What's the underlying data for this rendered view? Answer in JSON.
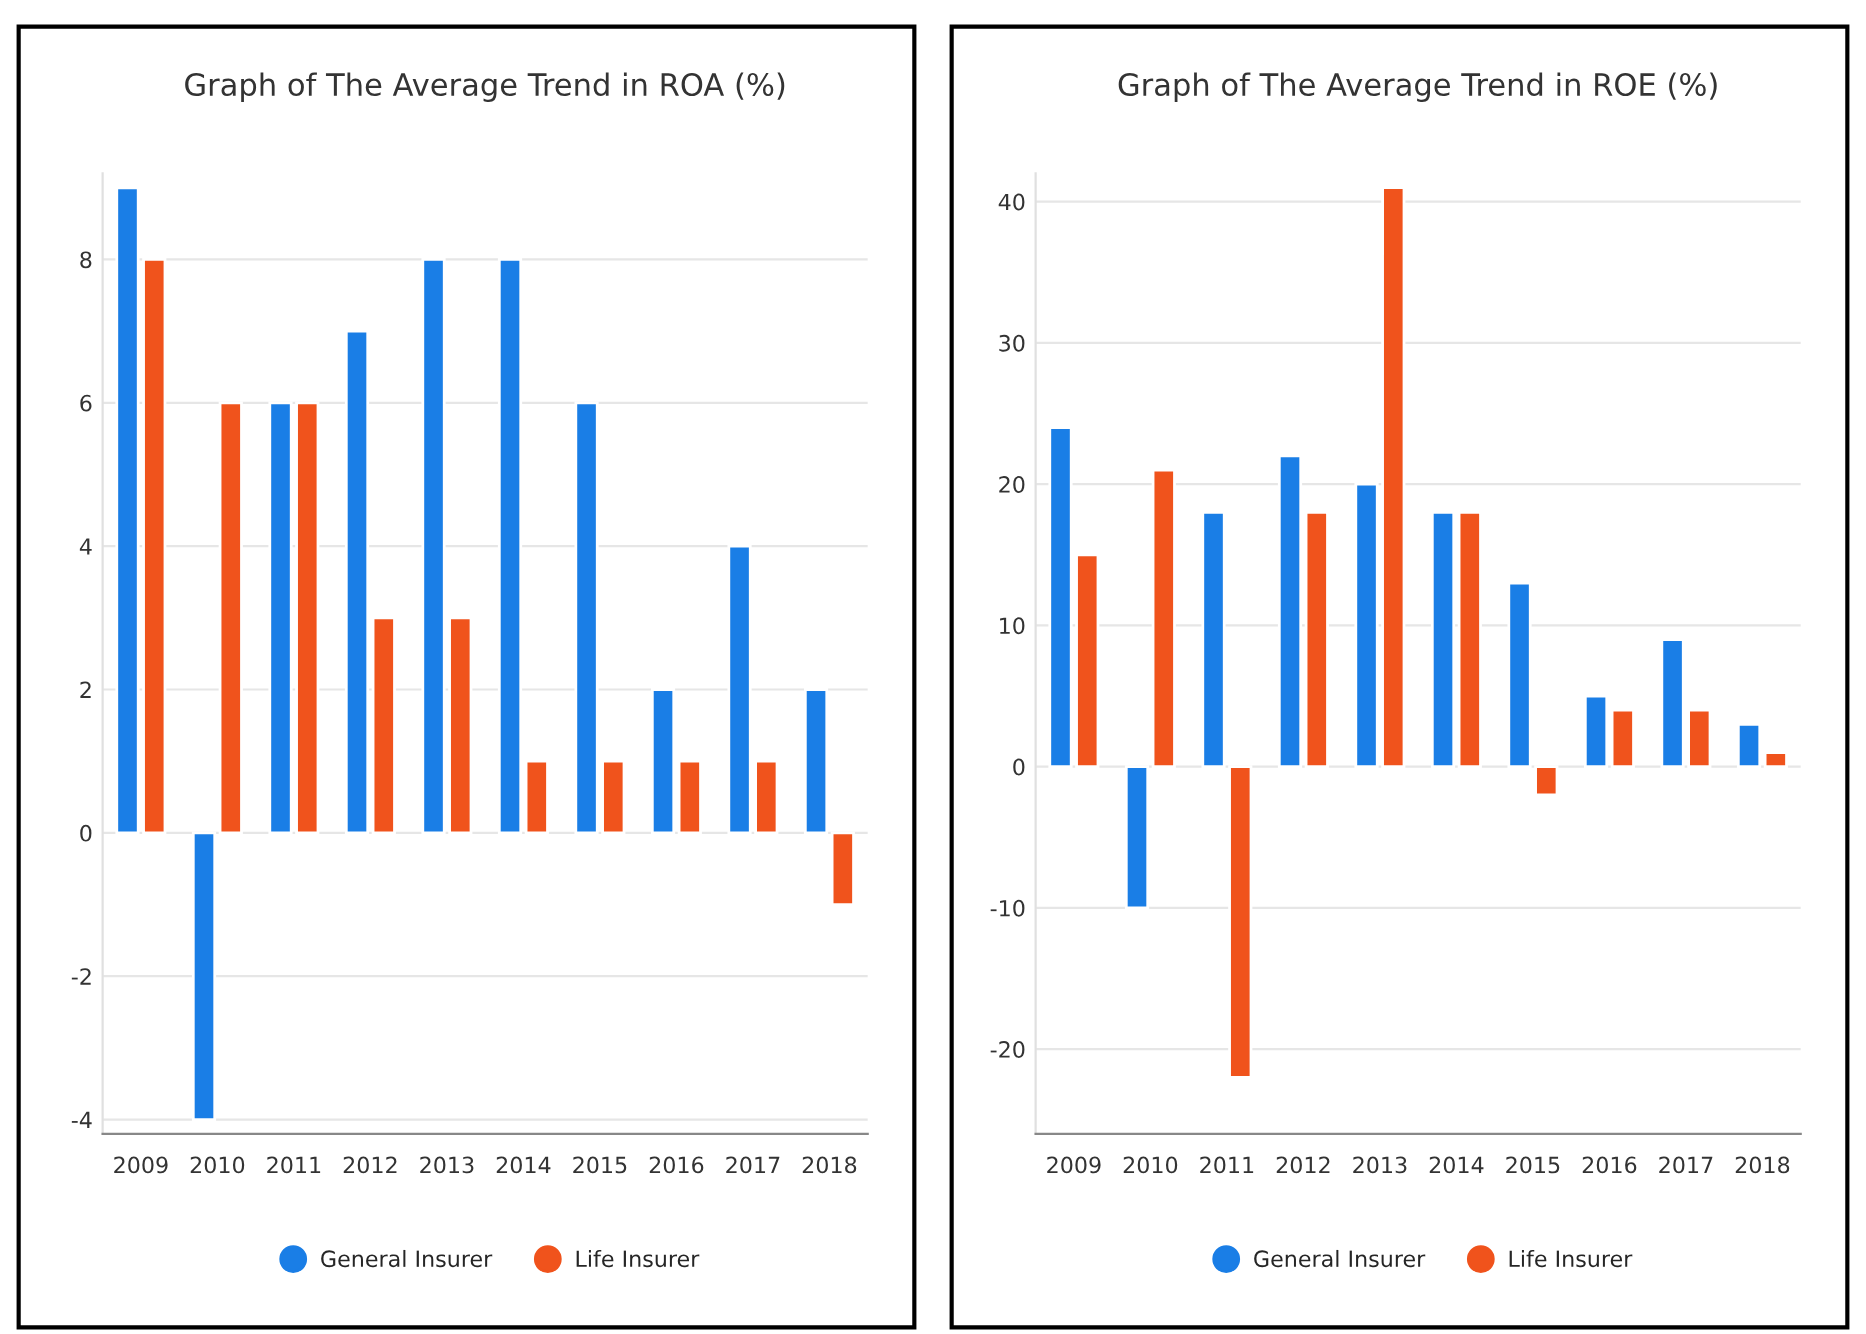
{
  "chart_data": [
    {
      "type": "bar",
      "title": "Graph of The Average Trend in ROA (%)",
      "categories": [
        "2009",
        "2010",
        "2011",
        "2012",
        "2013",
        "2014",
        "2015",
        "2016",
        "2017",
        "2018"
      ],
      "series": [
        {
          "name": "General Insurer",
          "color": "#1a7ee6",
          "values": [
            9,
            -4,
            6,
            7,
            8,
            8,
            6,
            2,
            4,
            2
          ]
        },
        {
          "name": "Life Insurer",
          "color": "#f0531c",
          "values": [
            8,
            6,
            6,
            3,
            3,
            1,
            1,
            1,
            1,
            -1
          ]
        }
      ],
      "ylim": [
        -4.2,
        9.2
      ],
      "yticks": [
        {
          "value": -4,
          "label": "-4"
        },
        {
          "value": -2,
          "label": "-2"
        },
        0,
        2,
        4,
        6,
        8
      ],
      "grid": "y",
      "legend": "bottom"
    },
    {
      "type": "bar",
      "title": "Graph of The Average Trend in ROE (%)",
      "categories": [
        "2009",
        "2010",
        "2011",
        "2012",
        "2013",
        "2014",
        "2015",
        "2016",
        "2017",
        "2018"
      ],
      "series": [
        {
          "name": "General Insurer",
          "color": "#1a7ee6",
          "values": [
            24,
            -10,
            18,
            22,
            20,
            18,
            13,
            5,
            9,
            3
          ]
        },
        {
          "name": "Life Insurer",
          "color": "#f0531c",
          "values": [
            15,
            21,
            -22,
            18,
            41,
            18,
            -2,
            4,
            4,
            1
          ]
        }
      ],
      "ylim": [
        -26,
        42
      ],
      "yticks": [
        {
          "value": -20,
          "label": "-20"
        },
        {
          "value": -10,
          "label": "-10"
        },
        0,
        10,
        20,
        30,
        40
      ],
      "grid": "y",
      "legend": "bottom"
    }
  ]
}
